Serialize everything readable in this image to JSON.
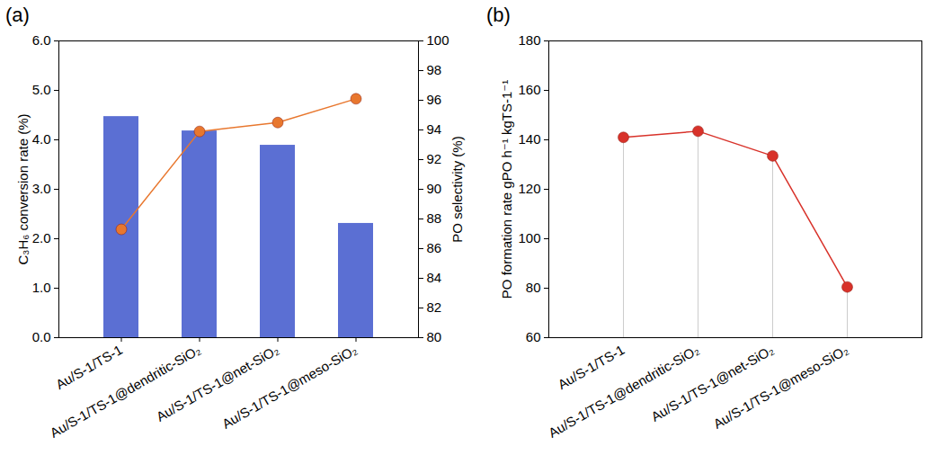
{
  "chart_data": [
    {
      "type": "bar",
      "title": "(a)",
      "categories": [
        "Au/S-1/TS-1",
        "Au/S-1/TS-1@dendritic-SiO₂",
        "Au/S-1/TS-1@net-SiO₂",
        "Au/S-1/TS-1@meso-SiO₂"
      ],
      "ylabel": "C₃H₆ conversion rate (%)",
      "y2label": "PO selectivity (%)",
      "series": [
        {
          "type": "bar",
          "color": "#5b6fd3",
          "values": [
            4.47,
            4.18,
            3.89,
            2.31
          ]
        },
        {
          "type": "line",
          "axis": "y2",
          "color": "#e8772e",
          "marker": "circle",
          "line_style": "solid",
          "values": [
            87.3,
            93.9,
            94.5,
            96.1
          ]
        }
      ],
      "ylim": [
        0,
        6
      ],
      "yticks": [
        0,
        1,
        2,
        3,
        4,
        5,
        6
      ],
      "y2lim": [
        80,
        100
      ],
      "y2ticks": [
        80,
        82,
        84,
        86,
        88,
        90,
        92,
        94,
        96,
        98,
        100
      ],
      "grid": false
    },
    {
      "type": "line",
      "title": "(b)",
      "categories": [
        "Au/S-1/TS-1",
        "Au/S-1/TS-1@dendritic-SiO₂",
        "Au/S-1/TS-1@net-SiO₂",
        "Au/S-1/TS-1@meso-SiO₂"
      ],
      "ylabel": "PO formation rate gPO h⁻¹ kgTS-1⁻¹",
      "series": [
        {
          "type": "line",
          "color": "#d8322a",
          "marker": "circle",
          "line_style": "solid",
          "values": [
            141,
            143.5,
            133.5,
            80.5
          ]
        }
      ],
      "ylim": [
        60,
        180
      ],
      "yticks": [
        60,
        80,
        100,
        120,
        140,
        160,
        180
      ],
      "grid": false
    }
  ]
}
